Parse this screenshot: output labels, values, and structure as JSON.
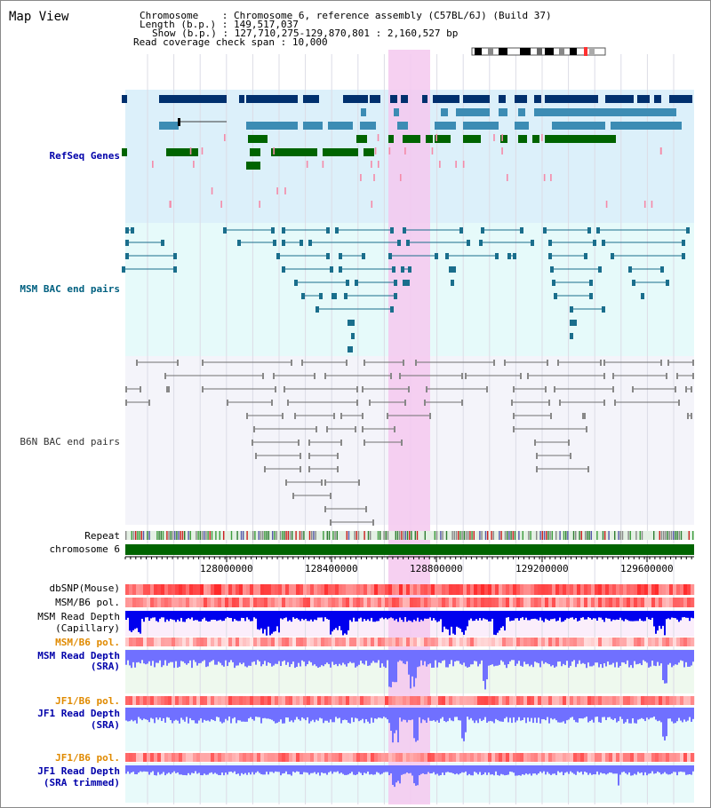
{
  "app": {
    "title": "Map View"
  },
  "header": {
    "chromosome_label": "Chromosome",
    "chromosome_value": "Chromosome 6, reference assembly (C57BL/6J) (Build 37)",
    "length_label": "Length (b.p.)",
    "length_value": "149,517,037",
    "show_label": "Show (b.p.)",
    "show_value": "127,710,275-129,870,801 : 2,160,527 bp",
    "coverage_label": "Read coverage check span",
    "coverage_value": "10,000"
  },
  "tracks": {
    "refseq": "RefSeq Genes",
    "msm_bac": "MSM BAC end pairs",
    "b6n_bac": "B6N BAC end pairs",
    "repeat": "Repeat",
    "chromosome": "chromosome 6",
    "dbsnp": "dbSNP(Mouse)",
    "msm_b6_pol_1": "MSM/B6 pol.",
    "msm_read_depth_cap_1": "MSM Read Depth",
    "msm_read_depth_cap_2": "(Capillary)",
    "msm_b6_pol_2": "MSM/B6 pol.",
    "msm_read_depth_sra_1": "MSM Read Depth",
    "msm_read_depth_sra_2": "(SRA)",
    "jf1_b6_pol_1": "JF1/B6 pol.",
    "jf1_read_depth_sra_1": "JF1 Read Depth",
    "jf1_read_depth_sra_2": "(SRA)",
    "jf1_b6_pol_2": "JF1/B6 pol.",
    "jf1_read_depth_trim_1": "JF1 Read Depth",
    "jf1_read_depth_trim_2": "(SRA trimmed)"
  },
  "axis": {
    "ticks": [
      "128000000",
      "128400000",
      "128800000",
      "129200000",
      "129600000"
    ]
  },
  "colors": {
    "highlight": "#f5c8ee",
    "refseq_bg": "#dcf0fa",
    "msm_bg": "#e6fafa",
    "b6n_bg": "#f4f4fa",
    "gene_dark": "#00306e",
    "gene_mid": "#3c8cb4",
    "gene_green": "#006400",
    "msm_pair": "#1a6e8c",
    "b6n_pair": "#707070",
    "depth_blue": "#0000ee",
    "depth_light": "#7070ff"
  }
}
